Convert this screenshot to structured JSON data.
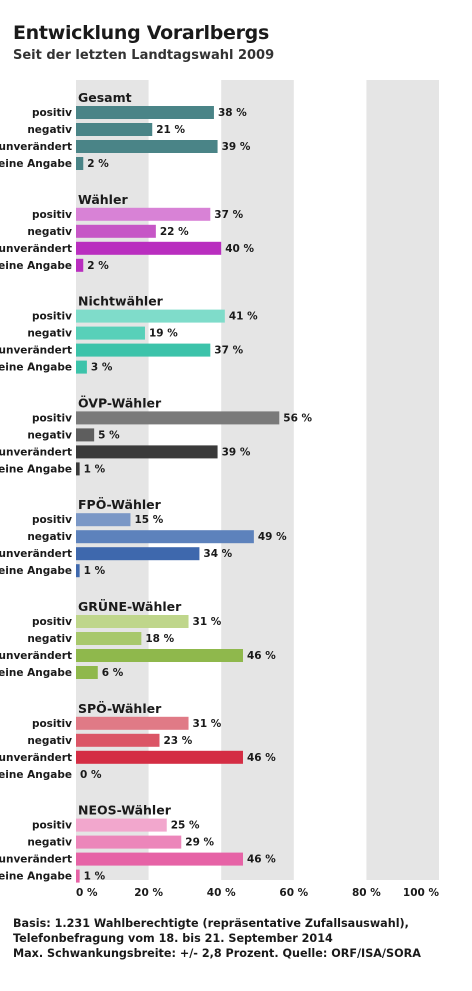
{
  "header": {
    "title": "Entwicklung Vorarlbergs",
    "subtitle": "Seit der letzten Landtagswahl 2009"
  },
  "chart_data": {
    "type": "bar",
    "orientation": "horizontal",
    "title": "Entwicklung Vorarlbergs",
    "subtitle": "Seit der letzten Landtagswahl 2009",
    "xlim": [
      0,
      100
    ],
    "xticks": [
      0,
      20,
      40,
      60,
      80,
      100
    ],
    "xtick_labels": [
      "0 %",
      "20 %",
      "40 %",
      "60 %",
      "80 %",
      "100 %"
    ],
    "unit_suffix": " %",
    "categories": [
      "positiv",
      "negativ",
      "unverändert",
      "keine Angabe"
    ],
    "groups": [
      {
        "name": "Gesamt",
        "values": [
          38,
          21,
          39,
          2
        ],
        "colors": [
          "#4a8487",
          "#4a8487",
          "#4a8487",
          "#4a8487"
        ]
      },
      {
        "name": "Wähler",
        "values": [
          37,
          22,
          40,
          2
        ],
        "colors": [
          "#d882d6",
          "#c656c6",
          "#b92ebf",
          "#b92ebf"
        ]
      },
      {
        "name": "Nichtwähler",
        "values": [
          41,
          19,
          37,
          3
        ],
        "colors": [
          "#7fdcca",
          "#58d0b9",
          "#3cc3aa",
          "#3cc3aa"
        ]
      },
      {
        "name": "ÖVP-Wähler",
        "values": [
          56,
          5,
          39,
          1
        ],
        "colors": [
          "#7a7a7a",
          "#5e5e5e",
          "#3a3a3a",
          "#3a3a3a"
        ]
      },
      {
        "name": "FPÖ-Wähler",
        "values": [
          15,
          49,
          34,
          1
        ],
        "colors": [
          "#7a97c6",
          "#5d82bc",
          "#3e68ad",
          "#3e68ad"
        ]
      },
      {
        "name": "GRÜNE-Wähler",
        "values": [
          31,
          18,
          46,
          6
        ],
        "colors": [
          "#bfd68b",
          "#a8c86c",
          "#8fb84c",
          "#8fb84c"
        ]
      },
      {
        "name": "SPÖ-Wähler",
        "values": [
          31,
          23,
          46,
          0
        ],
        "colors": [
          "#e07a86",
          "#db5566",
          "#d42d44",
          "#d42d44"
        ]
      },
      {
        "name": "NEOS-Wähler",
        "values": [
          25,
          29,
          46,
          1
        ],
        "colors": [
          "#f2a7cd",
          "#ec86ba",
          "#e663a6",
          "#e663a6"
        ]
      }
    ],
    "background_bands": {
      "stripe_color": "#e5e5e5",
      "stripes": [
        [
          0,
          20
        ],
        [
          40,
          60
        ],
        [
          80,
          100
        ]
      ]
    }
  },
  "notes": {
    "line1": "Basis: 1.231 Wahlberechtigte (repräsentative Zufallsauswahl),",
    "line2": "Telefonbefragung vom 18. bis 21. September 2014",
    "line3": "Max. Schwankungsbreite: +/- 2,8 Prozent. Quelle: ORF/ISA/SORA"
  }
}
